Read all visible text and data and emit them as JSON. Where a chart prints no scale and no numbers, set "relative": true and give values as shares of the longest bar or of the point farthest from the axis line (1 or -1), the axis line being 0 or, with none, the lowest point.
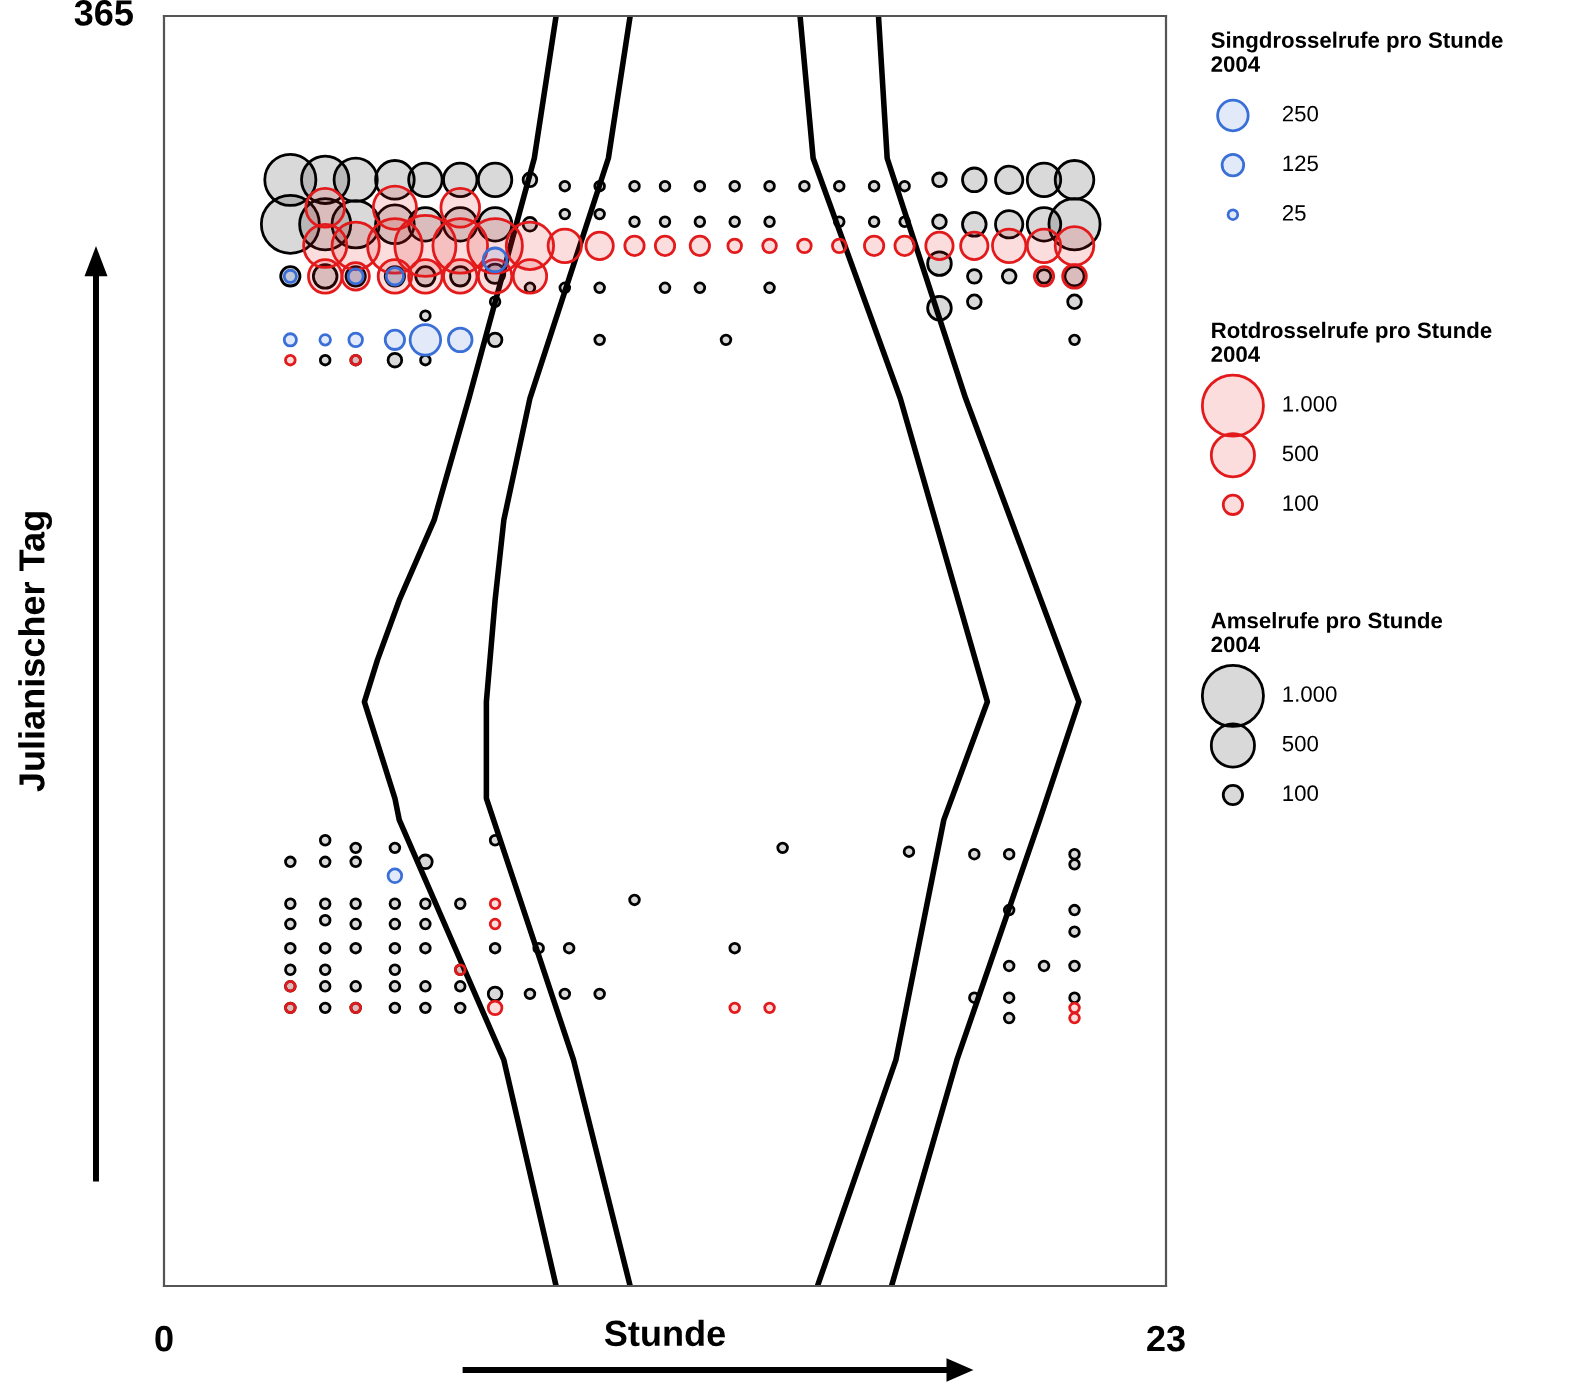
{
  "chart_data": {
    "type": "bubble",
    "xlabel": "Stunde",
    "ylabel": "Julianischer Tag",
    "xlim": [
      0,
      23
    ],
    "xticks": [
      0,
      23
    ],
    "relative": true,
    "annotations": [
      "365"
    ],
    "legend": "right",
    "size_legend": [
      250,
      125,
      25,
      {
        "value": 1000,
        "label": "1.000"
      },
      500,
      100,
      {
        "value": 1000,
        "label": "1.000"
      },
      500,
      100
    ],
    "series": [
      {
        "type": "bubble",
        "name": "Amselrufe pro Stunde\n2004",
        "color": "#000000",
        "x": [
          2.9,
          3.7,
          4.4,
          5.3,
          6.0,
          6.8,
          7.6,
          8.4,
          9.2,
          10.0,
          10.8,
          11.5,
          12.3,
          13.1,
          13.9,
          14.7,
          15.5,
          16.3,
          17.0,
          17.8,
          18.6,
          19.4,
          20.2,
          20.9,
          2.9,
          3.7,
          4.4,
          5.3,
          6.0,
          6.8,
          7.6,
          8.4,
          9.2,
          10.0,
          10.8,
          11.5,
          12.3,
          13.1,
          13.9,
          15.5,
          16.3,
          17.0,
          17.8,
          18.6,
          19.4,
          20.2,
          20.9,
          2.9,
          3.7,
          4.4,
          5.3,
          6.0,
          6.8,
          7.6,
          8.4,
          9.2,
          10.0,
          11.5,
          12.3,
          13.9,
          17.8,
          18.6,
          19.4,
          20.2,
          20.9,
          7.6,
          17.8,
          18.6,
          20.9,
          6.0,
          7.6,
          10.0,
          12.9,
          20.9,
          3.7,
          4.4,
          5.3,
          6.0,
          3.7,
          4.4,
          5.3,
          2.9,
          3.7,
          4.4,
          6.0,
          7.6,
          2.9,
          3.7,
          4.4,
          5.3,
          6.0,
          6.8,
          2.9,
          3.7,
          4.4,
          5.3,
          6.0,
          2.9,
          3.7,
          4.4,
          5.3,
          6.0,
          7.6,
          8.6,
          9.3,
          2.9,
          3.7,
          5.3,
          6.8,
          2.9,
          3.7,
          4.4,
          5.3,
          6.0,
          6.8,
          7.6,
          8.4,
          9.2,
          10.0,
          2.9,
          3.7,
          4.4,
          5.3,
          6.0,
          6.8,
          10.8,
          13.1,
          17.1,
          18.6,
          14.2,
          19.4,
          20.9,
          20.9,
          19.4,
          20.9,
          20.9,
          19.4,
          20.2,
          20.9,
          18.6,
          19.4,
          20.9,
          19.4
        ],
        "values": [
          0.871,
          0.871,
          0.871,
          0.871,
          0.871,
          0.871,
          0.871,
          0.871,
          0.866,
          0.866,
          0.866,
          0.866,
          0.866,
          0.866,
          0.866,
          0.866,
          0.866,
          0.866,
          0.866,
          0.871,
          0.871,
          0.871,
          0.871,
          0.871,
          0.836,
          0.836,
          0.836,
          0.836,
          0.836,
          0.836,
          0.836,
          0.836,
          0.844,
          0.844,
          0.838,
          0.838,
          0.838,
          0.838,
          0.838,
          0.838,
          0.838,
          0.838,
          0.838,
          0.836,
          0.836,
          0.836,
          0.836,
          0.795,
          0.795,
          0.795,
          0.795,
          0.795,
          0.795,
          0.797,
          0.786,
          0.786,
          0.786,
          0.786,
          0.786,
          0.786,
          0.805,
          0.795,
          0.795,
          0.795,
          0.795,
          0.775,
          0.77,
          0.775,
          0.775,
          0.764,
          0.745,
          0.745,
          0.745,
          0.745,
          0.729,
          0.729,
          0.729,
          0.729,
          0.351,
          0.345,
          0.345,
          0.334,
          0.334,
          0.334,
          0.334,
          0.351,
          0.301,
          0.301,
          0.301,
          0.301,
          0.301,
          0.301,
          0.285,
          0.288,
          0.285,
          0.285,
          0.285,
          0.266,
          0.266,
          0.266,
          0.266,
          0.266,
          0.266,
          0.266,
          0.266,
          0.249,
          0.249,
          0.249,
          0.249,
          0.236,
          0.236,
          0.236,
          0.236,
          0.236,
          0.236,
          0.23,
          0.23,
          0.23,
          0.23,
          0.219,
          0.219,
          0.219,
          0.219,
          0.219,
          0.219,
          0.304,
          0.266,
          0.342,
          0.34,
          0.345,
          0.34,
          0.34,
          0.332,
          0.296,
          0.296,
          0.279,
          0.252,
          0.252,
          0.252,
          0.227,
          0.227,
          0.227,
          0.211
        ],
        "sizes": [
          700,
          600,
          500,
          400,
          300,
          300,
          300,
          50,
          25,
          25,
          25,
          25,
          25,
          25,
          25,
          25,
          25,
          25,
          25,
          50,
          150,
          200,
          300,
          400,
          900,
          700,
          600,
          400,
          300,
          300,
          300,
          50,
          25,
          25,
          25,
          25,
          25,
          25,
          25,
          25,
          25,
          25,
          50,
          150,
          200,
          300,
          700,
          100,
          150,
          100,
          100,
          100,
          100,
          100,
          25,
          25,
          25,
          25,
          25,
          25,
          150,
          50,
          50,
          50,
          100,
          25,
          150,
          50,
          50,
          25,
          50,
          25,
          25,
          25,
          25,
          25,
          50,
          25,
          25,
          25,
          25,
          25,
          25,
          25,
          50,
          25,
          25,
          25,
          25,
          25,
          25,
          25,
          25,
          25,
          25,
          25,
          25,
          25,
          25,
          25,
          25,
          25,
          25,
          25,
          25,
          25,
          25,
          25,
          25,
          25,
          25,
          25,
          25,
          25,
          25,
          50,
          25,
          25,
          25,
          25,
          25,
          25,
          25,
          25,
          25,
          25,
          25,
          25,
          25,
          25,
          25,
          25,
          25,
          25,
          25,
          25,
          25,
          25,
          25,
          25,
          25,
          25,
          25
        ]
      },
      {
        "type": "bubble",
        "name": "Rotdrosselrufe pro Stunde\n2004",
        "color": "#e31a1c",
        "x": [
          3.7,
          5.3,
          6.8,
          3.7,
          4.4,
          5.3,
          6.0,
          6.8,
          7.6,
          8.4,
          9.2,
          10.0,
          10.8,
          11.5,
          12.3,
          13.1,
          13.9,
          14.7,
          15.5,
          16.3,
          17.0,
          17.8,
          18.6,
          19.4,
          20.2,
          20.9,
          3.7,
          4.4,
          5.3,
          6.0,
          6.8,
          7.6,
          8.4,
          20.2,
          20.9,
          2.9,
          4.4,
          7.6,
          7.6,
          2.9,
          2.9,
          4.4,
          7.6,
          13.1,
          13.9,
          20.9,
          20.9,
          6.8
        ],
        "values": [
          0.849,
          0.849,
          0.849,
          0.819,
          0.819,
          0.819,
          0.819,
          0.819,
          0.819,
          0.819,
          0.819,
          0.819,
          0.819,
          0.819,
          0.819,
          0.819,
          0.819,
          0.819,
          0.819,
          0.819,
          0.819,
          0.819,
          0.819,
          0.819,
          0.819,
          0.819,
          0.795,
          0.795,
          0.795,
          0.795,
          0.795,
          0.795,
          0.795,
          0.795,
          0.795,
          0.729,
          0.729,
          0.301,
          0.285,
          0.236,
          0.219,
          0.219,
          0.219,
          0.219,
          0.219,
          0.219,
          0.211,
          0.249
        ],
        "sizes": [
          400,
          500,
          400,
          500,
          600,
          800,
          1000,
          800,
          800,
          600,
          300,
          200,
          100,
          100,
          100,
          50,
          50,
          50,
          50,
          100,
          100,
          200,
          200,
          300,
          300,
          400,
          300,
          200,
          300,
          300,
          300,
          300,
          300,
          100,
          150,
          25,
          25,
          25,
          25,
          25,
          25,
          25,
          50,
          25,
          25,
          25,
          25,
          25
        ]
      },
      {
        "type": "bubble",
        "name": "Singdrosselrufe pro Stunde\n2004",
        "color": "#3a6fd8",
        "x": [
          2.9,
          4.4,
          5.3,
          7.6,
          2.9,
          3.7,
          4.4,
          5.3,
          6.0,
          6.8,
          5.3
        ],
        "values": [
          0.795,
          0.795,
          0.795,
          0.808,
          0.745,
          0.745,
          0.745,
          0.745,
          0.745,
          0.745,
          0.323
        ],
        "sizes": [
          40,
          60,
          80,
          150,
          40,
          30,
          50,
          100,
          250,
          150,
          50
        ]
      },
      {
        "type": "line",
        "color": "#000000",
        "x": [
          9.0,
          8.5,
          7.0,
          6.2,
          5.4,
          4.9,
          4.6,
          5.3,
          5.4,
          7.8,
          9.0
        ],
        "values": [
          1,
          0.888,
          0.699,
          0.603,
          0.54,
          0.493,
          0.46,
          0.384,
          0.367,
          0.178,
          0
        ]
      },
      {
        "type": "line",
        "color": "#000000",
        "x": [
          10.7,
          10.2,
          8.4,
          7.8,
          7.6,
          7.4,
          7.4,
          9.4,
          10.7
        ],
        "values": [
          1,
          0.888,
          0.699,
          0.603,
          0.54,
          0.46,
          0.384,
          0.178,
          0
        ]
      },
      {
        "type": "line",
        "color": "#000000",
        "x": [
          14.6,
          14.9,
          16.9,
          18.9,
          17.9,
          16.8,
          15.0
        ],
        "values": [
          1,
          0.888,
          0.699,
          0.46,
          0.367,
          0.178,
          0
        ]
      },
      {
        "type": "line",
        "color": "#000000",
        "x": [
          16.4,
          16.6,
          18.4,
          21.0,
          20.1,
          18.2,
          16.7
        ],
        "values": [
          1,
          0.888,
          0.699,
          0.46,
          0.367,
          0.178,
          0
        ]
      }
    ]
  }
}
